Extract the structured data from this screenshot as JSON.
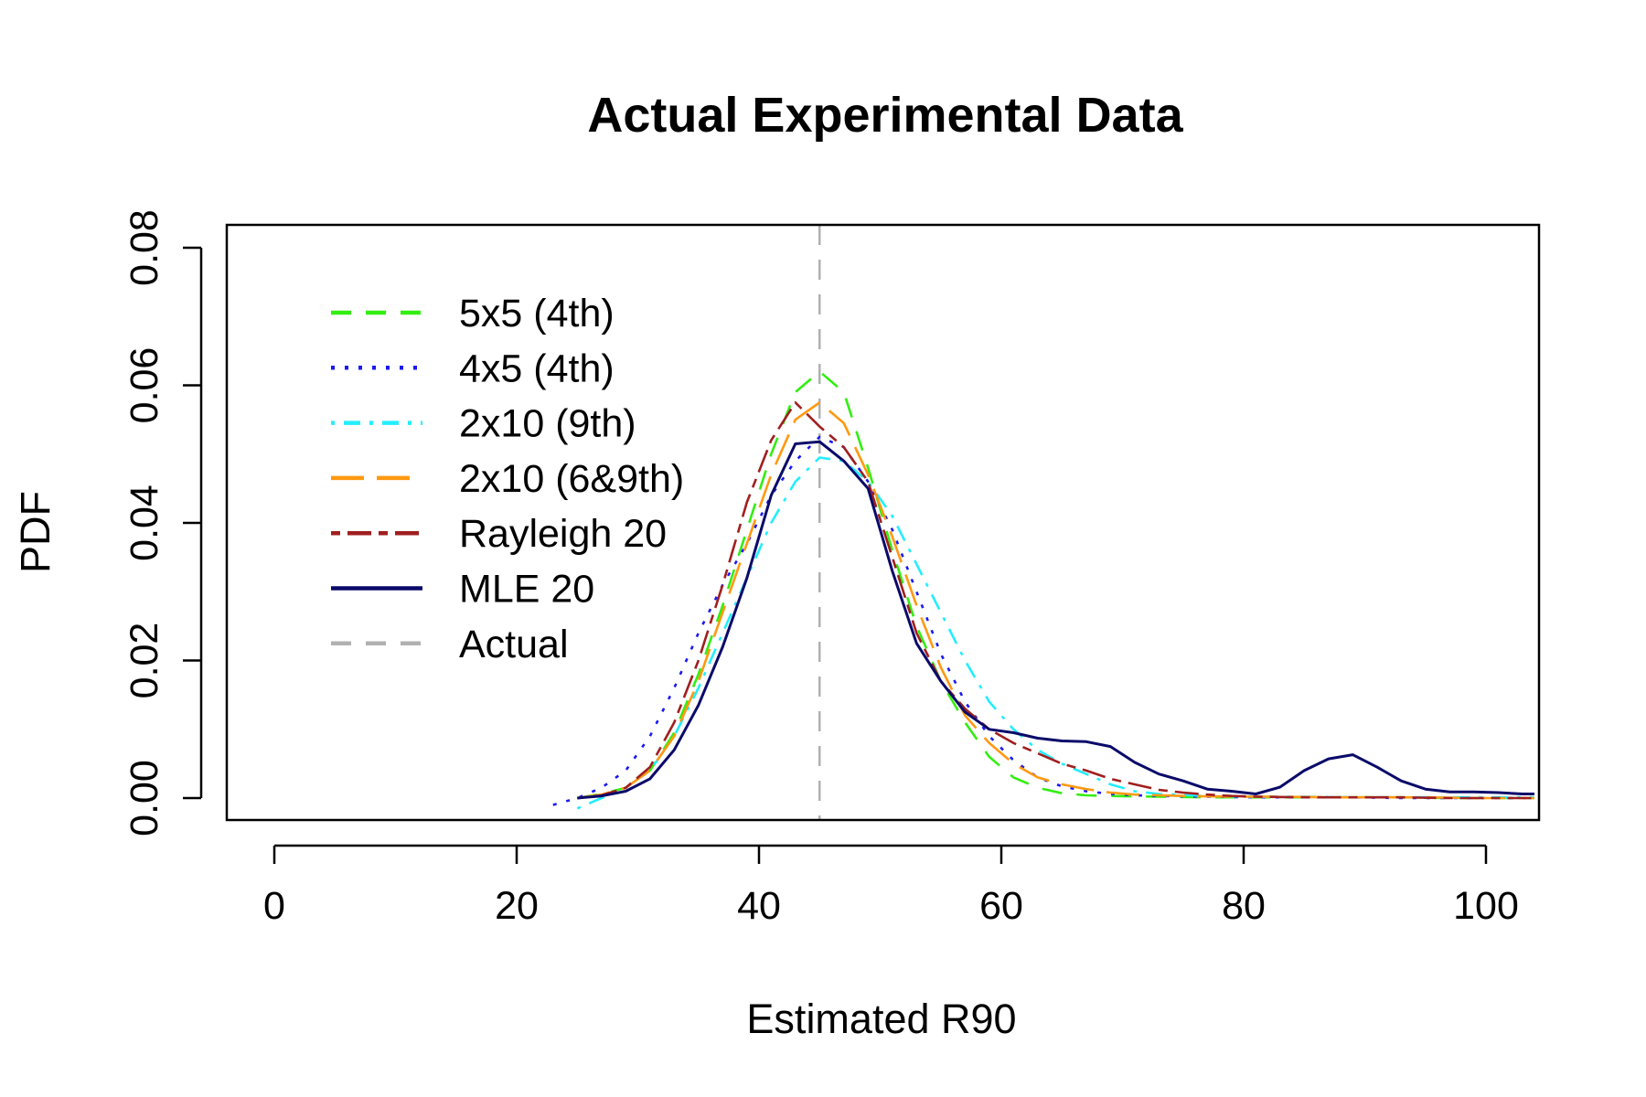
{
  "chart_data": {
    "type": "line",
    "title": "Actual Experimental Data",
    "xlabel": "Estimated R90",
    "ylabel": "PDF",
    "xlim": [
      0,
      104
    ],
    "ylim": [
      0,
      0.08
    ],
    "x_ticks": [
      0,
      20,
      40,
      60,
      80,
      100
    ],
    "y_ticks": [
      0.0,
      0.02,
      0.04,
      0.06,
      0.08
    ],
    "y_tick_labels": [
      "0.00",
      "0.02",
      "0.04",
      "0.06",
      "0.08"
    ],
    "grid": false,
    "legend_position": "top-left",
    "reference_line": {
      "name": "Actual",
      "x": 45,
      "color": "#b0b0b0",
      "dash": "dashed"
    },
    "series": [
      {
        "name": "5x5 (4th)",
        "color": "#33ee11",
        "dash": "dashed",
        "x": [
          25,
          27,
          29,
          31,
          33,
          35,
          37,
          39,
          41,
          43,
          45,
          47,
          49,
          51,
          53,
          55,
          57,
          59,
          61,
          63,
          65,
          67,
          69,
          73,
          77,
          81,
          85,
          89,
          93,
          97,
          101,
          104
        ],
        "y": [
          0.0,
          0.0006,
          0.0015,
          0.004,
          0.0095,
          0.018,
          0.028,
          0.039,
          0.05,
          0.059,
          0.062,
          0.059,
          0.048,
          0.036,
          0.025,
          0.017,
          0.011,
          0.006,
          0.003,
          0.0015,
          0.0007,
          0.0004,
          0.0003,
          0.0002,
          0.0001,
          0.0001,
          0.0001,
          0.0001,
          0.0001,
          0.0,
          0.0,
          0.0
        ]
      },
      {
        "name": "4x5 (4th)",
        "color": "#1a1aee",
        "dash": "dotted",
        "x": [
          23,
          25,
          27,
          29,
          31,
          33,
          35,
          37,
          39,
          41,
          43,
          45,
          47,
          49,
          51,
          53,
          55,
          57,
          59,
          61,
          63,
          65,
          67,
          69,
          71,
          73,
          77,
          81,
          85,
          89,
          93,
          97,
          101,
          104
        ],
        "y": [
          -0.001,
          0.0,
          0.0015,
          0.004,
          0.009,
          0.016,
          0.024,
          0.031,
          0.037,
          0.044,
          0.049,
          0.0525,
          0.051,
          0.046,
          0.039,
          0.03,
          0.021,
          0.014,
          0.009,
          0.0055,
          0.003,
          0.0017,
          0.001,
          0.0006,
          0.0004,
          0.0003,
          0.0002,
          0.0001,
          0.0001,
          0.0001,
          0.0,
          0.0,
          0.0,
          0.0
        ]
      },
      {
        "name": "2x10 (9th)",
        "color": "#22eeff",
        "dash": "dashdot",
        "x": [
          25,
          27,
          29,
          31,
          33,
          35,
          37,
          39,
          41,
          43,
          45,
          47,
          49,
          51,
          53,
          55,
          57,
          59,
          61,
          63,
          65,
          67,
          69,
          71,
          73,
          77,
          81,
          85,
          89,
          93,
          97,
          101,
          104
        ],
        "y": [
          -0.0015,
          0.0,
          0.0015,
          0.004,
          0.009,
          0.016,
          0.024,
          0.032,
          0.04,
          0.046,
          0.0495,
          0.049,
          0.046,
          0.041,
          0.034,
          0.027,
          0.02,
          0.014,
          0.01,
          0.007,
          0.005,
          0.0035,
          0.002,
          0.001,
          0.0006,
          0.0003,
          0.0002,
          0.0002,
          0.0001,
          0.0001,
          0.0001,
          0.0001,
          0.0001
        ]
      },
      {
        "name": "2x10 (6&9th)",
        "color": "#ff9911",
        "dash": "longdash",
        "x": [
          25,
          27,
          29,
          31,
          33,
          35,
          37,
          39,
          41,
          43,
          45,
          47,
          49,
          51,
          53,
          55,
          57,
          59,
          61,
          63,
          65,
          67,
          69,
          71,
          75,
          79,
          83,
          87,
          91,
          95,
          99,
          104
        ],
        "y": [
          0.0,
          0.0005,
          0.0015,
          0.004,
          0.009,
          0.017,
          0.027,
          0.037,
          0.047,
          0.055,
          0.0575,
          0.0545,
          0.047,
          0.038,
          0.028,
          0.019,
          0.012,
          0.008,
          0.005,
          0.003,
          0.002,
          0.0013,
          0.0008,
          0.0005,
          0.0003,
          0.0002,
          0.0002,
          0.0001,
          0.0001,
          0.0001,
          0.0,
          0.0
        ]
      },
      {
        "name": "Rayleigh 20",
        "color": "#a01f1f",
        "dash": "twodash",
        "x": [
          25,
          27,
          29,
          31,
          33,
          35,
          37,
          39,
          41,
          43,
          45,
          47,
          49,
          51,
          53,
          55,
          57,
          59,
          61,
          63,
          65,
          67,
          69,
          71,
          73,
          75,
          77,
          79,
          81,
          85,
          89,
          93,
          97,
          101,
          104
        ],
        "y": [
          0.0,
          0.0004,
          0.0015,
          0.0045,
          0.011,
          0.02,
          0.031,
          0.043,
          0.052,
          0.0575,
          0.054,
          0.051,
          0.046,
          0.035,
          0.024,
          0.017,
          0.013,
          0.01,
          0.008,
          0.0065,
          0.005,
          0.004,
          0.0028,
          0.002,
          0.0012,
          0.0008,
          0.0005,
          0.0003,
          0.0002,
          0.0001,
          0.0001,
          0.0001,
          0.0,
          0.0,
          0.0
        ]
      },
      {
        "name": "MLE 20",
        "color": "#0a0a6a",
        "dash": "solid",
        "x": [
          25,
          27,
          29,
          31,
          33,
          35,
          37,
          39,
          41,
          43,
          45,
          47,
          49,
          51,
          53,
          55,
          57,
          59,
          61,
          63,
          65,
          67,
          69,
          71,
          73,
          75,
          77,
          79,
          81,
          83,
          85,
          87,
          89,
          91,
          93,
          95,
          97,
          99,
          101,
          103,
          104
        ],
        "y": [
          0.0,
          0.0003,
          0.001,
          0.0028,
          0.007,
          0.0135,
          0.022,
          0.032,
          0.044,
          0.0515,
          0.0518,
          0.049,
          0.045,
          0.033,
          0.0225,
          0.017,
          0.0125,
          0.01,
          0.0095,
          0.0087,
          0.0083,
          0.0082,
          0.0075,
          0.0052,
          0.0035,
          0.0025,
          0.0013,
          0.001,
          0.0006,
          0.0016,
          0.004,
          0.0057,
          0.0063,
          0.0045,
          0.0025,
          0.0013,
          0.0009,
          0.0009,
          0.0008,
          0.0006,
          0.0006
        ]
      }
    ]
  }
}
